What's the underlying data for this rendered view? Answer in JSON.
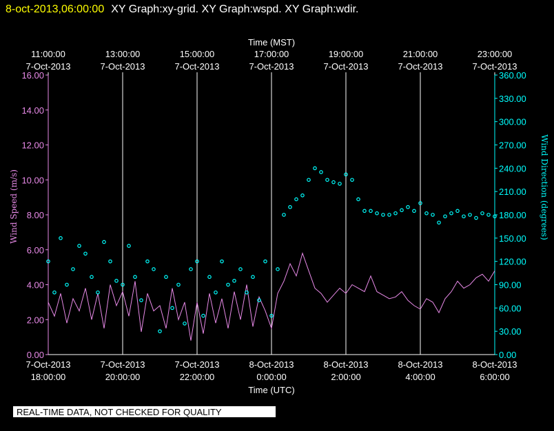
{
  "chart_data": {
    "type": "line",
    "title": "8-oct-2013,06:00:00",
    "subtitle": "XY Graph:xy-grid.  XY Graph:wspd.  XY Graph:wdir.",
    "footer": "REAL-TIME DATA, NOT CHECKED FOR QUALITY",
    "xlabel": "Time (UTC)",
    "x2label": "Time (MST)",
    "ylabel": "Wind Speed (m/s)",
    "y2label": "Wind Direction (degrees)",
    "grid": true,
    "xlim": [
      "2013-10-07 18:00:00",
      "2013-10-08 06:00:00"
    ],
    "xticks": [
      {
        "value": "2013-10-07 18:00:00",
        "label": [
          "7-Oct-2013",
          "18:00:00"
        ]
      },
      {
        "value": "2013-10-07 20:00:00",
        "label": [
          "7-Oct-2013",
          "20:00:00"
        ]
      },
      {
        "value": "2013-10-07 22:00:00",
        "label": [
          "7-Oct-2013",
          "22:00:00"
        ]
      },
      {
        "value": "2013-10-08 00:00:00",
        "label": [
          "8-Oct-2013",
          "0:00:00"
        ]
      },
      {
        "value": "2013-10-08 02:00:00",
        "label": [
          "8-Oct-2013",
          "2:00:00"
        ]
      },
      {
        "value": "2013-10-08 04:00:00",
        "label": [
          "8-Oct-2013",
          "4:00:00"
        ]
      },
      {
        "value": "2013-10-08 06:00:00",
        "label": [
          "8-Oct-2013",
          "6:00:00"
        ]
      }
    ],
    "x2ticks": [
      {
        "value": "2013-10-07 18:00:00",
        "label": [
          "11:00:00",
          "7-Oct-2013"
        ]
      },
      {
        "value": "2013-10-07 20:00:00",
        "label": [
          "13:00:00",
          "7-Oct-2013"
        ]
      },
      {
        "value": "2013-10-07 22:00:00",
        "label": [
          "15:00:00",
          "7-Oct-2013"
        ]
      },
      {
        "value": "2013-10-08 00:00:00",
        "label": [
          "17:00:00",
          "7-Oct-2013"
        ]
      },
      {
        "value": "2013-10-08 02:00:00",
        "label": [
          "19:00:00",
          "7-Oct-2013"
        ]
      },
      {
        "value": "2013-10-08 04:00:00",
        "label": [
          "21:00:00",
          "7-Oct-2013"
        ]
      },
      {
        "value": "2013-10-08 06:00:00",
        "label": [
          "23:00:00",
          "7-Oct-2013"
        ]
      }
    ],
    "ylim": [
      0,
      16
    ],
    "yticks": [
      {
        "value": 0,
        "label": "0.00"
      },
      {
        "value": 2,
        "label": "2.00"
      },
      {
        "value": 4,
        "label": "4.00"
      },
      {
        "value": 6,
        "label": "6.00"
      },
      {
        "value": 8,
        "label": "8.00"
      },
      {
        "value": 10,
        "label": "10.00"
      },
      {
        "value": 12,
        "label": "12.00"
      },
      {
        "value": 14,
        "label": "14.00"
      },
      {
        "value": 16,
        "label": "16.00"
      }
    ],
    "y2lim": [
      0,
      360
    ],
    "y2ticks": [
      {
        "value": 0,
        "label": "0.00"
      },
      {
        "value": 30,
        "label": "30.00"
      },
      {
        "value": 60,
        "label": "60.00"
      },
      {
        "value": 90,
        "label": "90.00"
      },
      {
        "value": 120,
        "label": "120.00"
      },
      {
        "value": 150,
        "label": "150.00"
      },
      {
        "value": 180,
        "label": "180.00"
      },
      {
        "value": 210,
        "label": "210.00"
      },
      {
        "value": 240,
        "label": "240.00"
      },
      {
        "value": 270,
        "label": "270.00"
      },
      {
        "value": 300,
        "label": "300.00"
      },
      {
        "value": 330,
        "label": "330.00"
      },
      {
        "value": 360,
        "label": "360.00"
      }
    ],
    "x": [
      "2013-10-07 18:00:00",
      "2013-10-07 18:10:00",
      "2013-10-07 18:20:00",
      "2013-10-07 18:30:00",
      "2013-10-07 18:40:00",
      "2013-10-07 18:50:00",
      "2013-10-07 19:00:00",
      "2013-10-07 19:10:00",
      "2013-10-07 19:20:00",
      "2013-10-07 19:30:00",
      "2013-10-07 19:40:00",
      "2013-10-07 19:50:00",
      "2013-10-07 20:00:00",
      "2013-10-07 20:10:00",
      "2013-10-07 20:20:00",
      "2013-10-07 20:30:00",
      "2013-10-07 20:40:00",
      "2013-10-07 20:50:00",
      "2013-10-07 21:00:00",
      "2013-10-07 21:10:00",
      "2013-10-07 21:20:00",
      "2013-10-07 21:30:00",
      "2013-10-07 21:40:00",
      "2013-10-07 21:50:00",
      "2013-10-07 22:00:00",
      "2013-10-07 22:10:00",
      "2013-10-07 22:20:00",
      "2013-10-07 22:30:00",
      "2013-10-07 22:40:00",
      "2013-10-07 22:50:00",
      "2013-10-07 23:00:00",
      "2013-10-07 23:10:00",
      "2013-10-07 23:20:00",
      "2013-10-07 23:30:00",
      "2013-10-07 23:40:00",
      "2013-10-07 23:50:00",
      "2013-10-08 00:00:00",
      "2013-10-08 00:10:00",
      "2013-10-08 00:20:00",
      "2013-10-08 00:30:00",
      "2013-10-08 00:40:00",
      "2013-10-08 00:50:00",
      "2013-10-08 01:00:00",
      "2013-10-08 01:10:00",
      "2013-10-08 01:20:00",
      "2013-10-08 01:30:00",
      "2013-10-08 01:40:00",
      "2013-10-08 01:50:00",
      "2013-10-08 02:00:00",
      "2013-10-08 02:10:00",
      "2013-10-08 02:20:00",
      "2013-10-08 02:30:00",
      "2013-10-08 02:40:00",
      "2013-10-08 02:50:00",
      "2013-10-08 03:00:00",
      "2013-10-08 03:10:00",
      "2013-10-08 03:20:00",
      "2013-10-08 03:30:00",
      "2013-10-08 03:40:00",
      "2013-10-08 03:50:00",
      "2013-10-08 04:00:00",
      "2013-10-08 04:10:00",
      "2013-10-08 04:20:00",
      "2013-10-08 04:30:00",
      "2013-10-08 04:40:00",
      "2013-10-08 04:50:00",
      "2013-10-08 05:00:00",
      "2013-10-08 05:10:00",
      "2013-10-08 05:20:00",
      "2013-10-08 05:30:00",
      "2013-10-08 05:40:00",
      "2013-10-08 05:50:00",
      "2013-10-08 06:00:00"
    ],
    "series": [
      {
        "type": "line",
        "axis": "y",
        "color": "#e88ae8",
        "values": [
          3.0,
          2.2,
          3.5,
          1.8,
          3.2,
          2.5,
          3.8,
          2.0,
          3.5,
          1.5,
          4.0,
          2.8,
          3.6,
          2.2,
          4.2,
          1.3,
          3.5,
          2.5,
          2.8,
          1.5,
          3.8,
          2.0,
          3.0,
          0.8,
          3.0,
          1.2,
          3.5,
          1.8,
          3.2,
          1.5,
          3.6,
          2.0,
          4.0,
          1.6,
          3.3,
          2.5,
          1.5,
          3.5,
          4.2,
          5.2,
          4.5,
          5.8,
          4.8,
          3.8,
          3.5,
          3.0,
          3.4,
          3.8,
          3.5,
          4.0,
          3.8,
          3.6,
          4.5,
          3.6,
          3.4,
          3.2,
          3.3,
          3.6,
          3.1,
          2.8,
          2.6,
          3.2,
          3.0,
          2.4,
          3.2,
          3.6,
          4.2,
          3.8,
          4.0,
          4.4,
          4.6,
          4.2,
          4.8
        ]
      },
      {
        "type": "scatter",
        "axis": "y2",
        "color": "#00ffff",
        "values": [
          120,
          80,
          150,
          90,
          110,
          140,
          130,
          100,
          80,
          145,
          120,
          95,
          90,
          140,
          100,
          70,
          120,
          110,
          30,
          100,
          60,
          90,
          40,
          110,
          120,
          50,
          100,
          80,
          120,
          90,
          95,
          110,
          80,
          100,
          70,
          120,
          50,
          110,
          180,
          190,
          200,
          205,
          225,
          240,
          235,
          225,
          222,
          220,
          232,
          225,
          200,
          185,
          185,
          182,
          180,
          180,
          182,
          186,
          190,
          185,
          195,
          182,
          180,
          170,
          178,
          182,
          185,
          178,
          180,
          176,
          182,
          180,
          178
        ]
      }
    ]
  }
}
